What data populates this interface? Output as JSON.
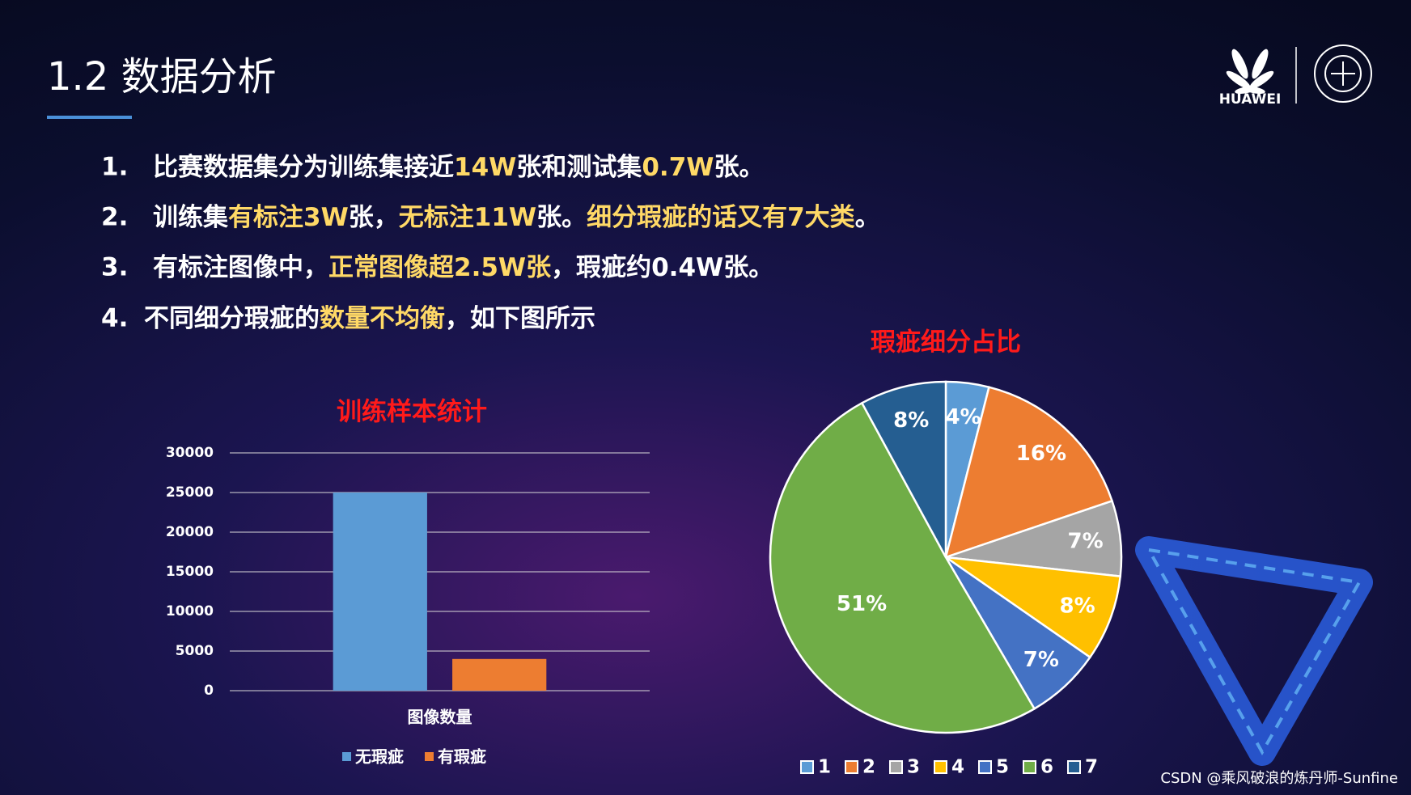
{
  "header": {
    "title": "1.2 数据分析",
    "logo": "HUAWEI"
  },
  "bullets": [
    {
      "number": "1.",
      "segments": [
        {
          "text": "比赛数据集分为训练集接近",
          "highlight": false
        },
        {
          "text": "14W",
          "highlight": true
        },
        {
          "text": "张和测试集",
          "highlight": false
        },
        {
          "text": "0.7W",
          "highlight": true
        },
        {
          "text": "张。",
          "highlight": false
        }
      ]
    },
    {
      "number": "2.",
      "segments": [
        {
          "text": "训练集",
          "highlight": false
        },
        {
          "text": "有标注3W",
          "highlight": true
        },
        {
          "text": "张，",
          "highlight": false
        },
        {
          "text": "无标注11W",
          "highlight": true
        },
        {
          "text": "张。",
          "highlight": false
        },
        {
          "text": "细分瑕疵的话又有7大类",
          "highlight": true
        },
        {
          "text": "。",
          "highlight": false
        }
      ]
    },
    {
      "number": "3.",
      "segments": [
        {
          "text": "有标注图像中，",
          "highlight": false
        },
        {
          "text": "正常图像超2.5W张",
          "highlight": true
        },
        {
          "text": "，瑕疵约0.4W张。",
          "highlight": false
        }
      ]
    },
    {
      "number": "4.",
      "segments": [
        {
          "text": "不同细分瑕疵的",
          "highlight": false
        },
        {
          "text": "数量不均衡",
          "highlight": true
        },
        {
          "text": "，如下图所示",
          "highlight": false
        }
      ]
    }
  ],
  "chart_data": [
    {
      "type": "bar",
      "title": "训练样本统计",
      "categories": [
        "图像数量"
      ],
      "series": [
        {
          "name": "无瑕疵",
          "color": "#5b9bd5",
          "values": [
            25000
          ]
        },
        {
          "name": "有瑕疵",
          "color": "#ed7d31",
          "values": [
            4000
          ]
        }
      ],
      "ylim": [
        0,
        30000
      ],
      "yticks": [
        0,
        5000,
        10000,
        15000,
        20000,
        25000,
        30000
      ],
      "grid": true,
      "legend": "bottom"
    },
    {
      "type": "pie",
      "title": "瑕疵细分占比",
      "categories": [
        "1",
        "2",
        "3",
        "4",
        "5",
        "6",
        "7"
      ],
      "values": [
        4,
        16,
        7,
        8,
        7,
        51,
        8
      ],
      "value_labels": [
        "4%",
        "16%",
        "7%",
        "8%",
        "7%",
        "51%",
        "8%"
      ],
      "colors": [
        "#5b9bd5",
        "#ed7d31",
        "#a5a5a5",
        "#ffc000",
        "#4472c4",
        "#70ad47",
        "#255e91"
      ],
      "legend": "bottom"
    }
  ],
  "watermark": "CSDN @乘风破浪的炼丹师-Sunfine"
}
